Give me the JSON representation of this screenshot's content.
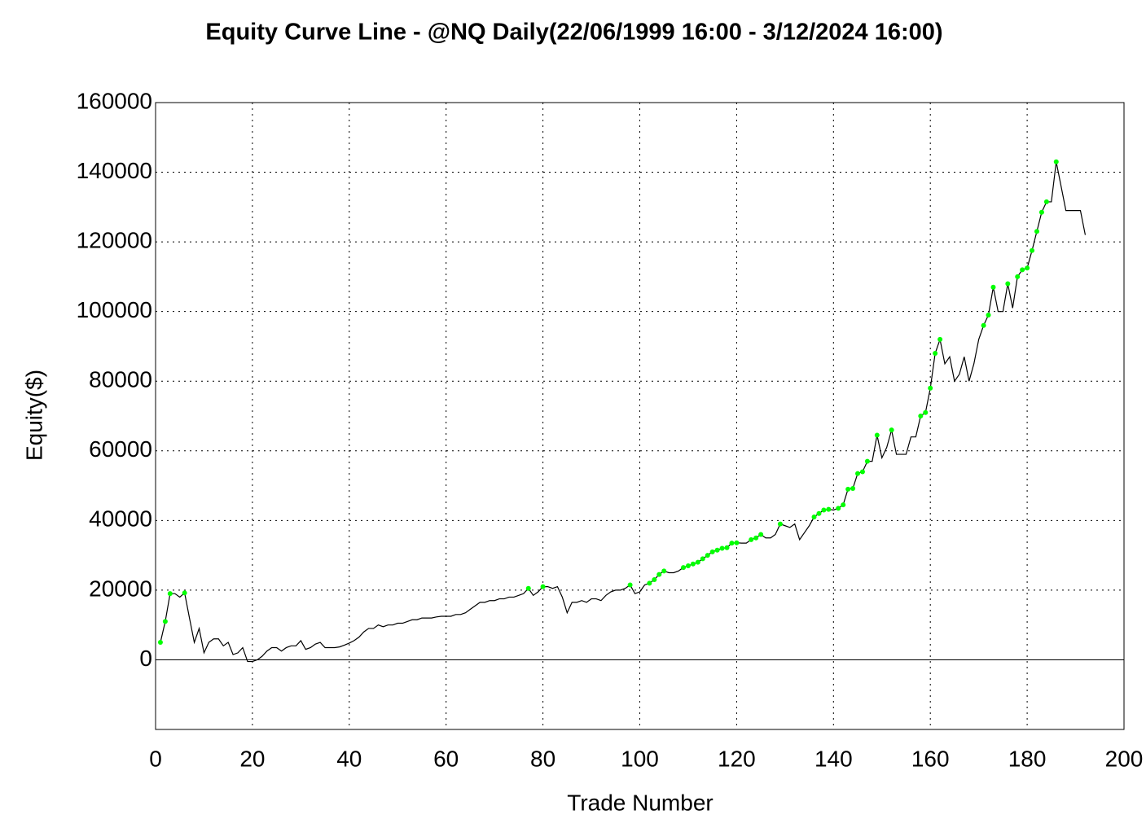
{
  "chart_data": {
    "type": "line",
    "title": "Equity Curve Line - @NQ Daily(22/06/1999 16:00 - 3/12/2024 16:00)",
    "x_label": "Trade Number",
    "y_label": "Equity($)",
    "xlim": [
      0,
      200
    ],
    "xticks": [
      0,
      20,
      40,
      60,
      80,
      100,
      120,
      140,
      160,
      180,
      200
    ],
    "ylim": [
      -20000,
      160000
    ],
    "yticks": [
      0,
      20000,
      40000,
      60000,
      80000,
      100000,
      120000,
      140000,
      160000
    ],
    "grid": true,
    "highlight_color": "#00ff00",
    "series": [
      {
        "name": "Equity",
        "color": "#000000",
        "x": [
          1,
          2,
          3,
          4,
          5,
          6,
          7,
          8,
          9,
          10,
          11,
          12,
          13,
          14,
          15,
          16,
          17,
          18,
          19,
          20,
          21,
          22,
          23,
          24,
          25,
          26,
          27,
          28,
          29,
          30,
          31,
          32,
          33,
          34,
          35,
          36,
          37,
          38,
          39,
          40,
          41,
          42,
          43,
          44,
          45,
          46,
          47,
          48,
          49,
          50,
          51,
          52,
          53,
          54,
          55,
          56,
          57,
          58,
          59,
          60,
          61,
          62,
          63,
          64,
          65,
          66,
          67,
          68,
          69,
          70,
          71,
          72,
          73,
          74,
          75,
          76,
          77,
          78,
          79,
          80,
          81,
          82,
          83,
          84,
          85,
          86,
          87,
          88,
          89,
          90,
          91,
          92,
          93,
          94,
          95,
          96,
          97,
          98,
          99,
          100,
          101,
          102,
          103,
          104,
          105,
          106,
          107,
          108,
          109,
          110,
          111,
          112,
          113,
          114,
          115,
          116,
          117,
          118,
          119,
          120,
          121,
          122,
          123,
          124,
          125,
          126,
          127,
          128,
          129,
          130,
          131,
          132,
          133,
          134,
          135,
          136,
          137,
          138,
          139,
          140,
          141,
          142,
          143,
          144,
          145,
          146,
          147,
          148,
          149,
          150,
          151,
          152,
          153,
          154,
          155,
          156,
          157,
          158,
          159,
          160,
          161,
          162,
          163,
          164,
          165,
          166,
          167,
          168,
          169,
          170,
          171,
          172,
          173,
          174,
          175,
          176,
          177,
          178,
          179,
          180,
          181,
          182,
          183,
          184,
          185,
          186,
          187,
          188,
          189,
          190,
          191,
          192
        ],
        "values": [
          5000,
          11000,
          19000,
          19000,
          18000,
          19200,
          12000,
          5000,
          9000,
          2000,
          5000,
          6000,
          6000,
          4000,
          5000,
          1500,
          2000,
          3500,
          -500,
          -500,
          0,
          1000,
          2500,
          3500,
          3500,
          2500,
          3500,
          4000,
          4000,
          5500,
          3000,
          3500,
          4500,
          5000,
          3500,
          3500,
          3500,
          3700,
          4200,
          4800,
          5500,
          6500,
          8000,
          9000,
          9000,
          10000,
          9500,
          10000,
          10000,
          10500,
          10500,
          11000,
          11500,
          11500,
          12000,
          12000,
          12000,
          12300,
          12500,
          12500,
          12500,
          13000,
          13000,
          13500,
          14500,
          15500,
          16500,
          16500,
          17000,
          17000,
          17500,
          17500,
          18000,
          18000,
          18500,
          19000,
          20500,
          18500,
          19500,
          21000,
          21000,
          20500,
          21000,
          18000,
          13500,
          16500,
          16500,
          17000,
          16500,
          17500,
          17500,
          17000,
          18500,
          19500,
          20000,
          20000,
          20500,
          21500,
          19000,
          19500,
          21500,
          22000,
          23000,
          24500,
          25500,
          25000,
          25000,
          25500,
          26500,
          27000,
          27500,
          28000,
          29000,
          30000,
          31000,
          31500,
          32000,
          32200,
          33500,
          33600,
          33500,
          33500,
          34500,
          35000,
          36000,
          35000,
          35000,
          36000,
          39000,
          38500,
          38000,
          39000,
          34500,
          36500,
          38500,
          41000,
          42000,
          43000,
          43200,
          43000,
          43500,
          44500,
          49000,
          49200,
          53500,
          54000,
          57000,
          57000,
          64500,
          58000,
          61000,
          66000,
          59000,
          59000,
          59000,
          64000,
          64000,
          70000,
          71000,
          78000,
          88000,
          92000,
          85000,
          87000,
          80000,
          82000,
          87000,
          80000,
          85000,
          92000,
          96000,
          99000,
          107000,
          100000,
          100000,
          108000,
          101000,
          110000,
          112000,
          112500,
          117500,
          123000,
          128500,
          131500,
          131500,
          143000,
          136000,
          129000,
          129000,
          129000,
          129000,
          122000
        ]
      }
    ]
  }
}
